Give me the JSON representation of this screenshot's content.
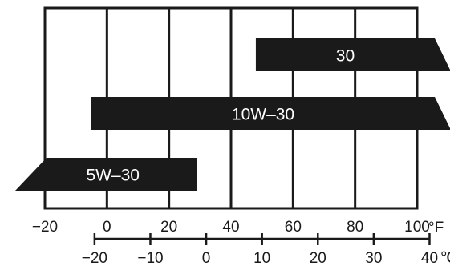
{
  "chart_data": {
    "type": "bar",
    "orientation": "horizontal",
    "title": "",
    "xlabel": "",
    "ylabel": "",
    "xlim_f": [
      -20,
      100
    ],
    "grid": true,
    "bars": [
      {
        "label": "30",
        "start_f": 48,
        "end_f": 100,
        "open_start": false,
        "open_end": true
      },
      {
        "label": "10W–30",
        "start_f": -5,
        "end_f": 100,
        "open_start": false,
        "open_end": true
      },
      {
        "label": "5W–30",
        "start_f": -20,
        "end_f": 29,
        "open_start": true,
        "open_end": false
      }
    ],
    "axis_f": {
      "ticks": [
        "−20",
        "0",
        "20",
        "40",
        "60",
        "80",
        "100"
      ],
      "values": [
        -20,
        0,
        20,
        40,
        60,
        80,
        100
      ],
      "unit": "°F"
    },
    "axis_c": {
      "ticks": [
        "−20",
        "−10",
        "0",
        "10",
        "20",
        "30",
        "40"
      ],
      "values": [
        -20,
        -10,
        0,
        10,
        20,
        30,
        40
      ],
      "unit": "℃"
    },
    "colors": {
      "bar": "#1a1a1a",
      "grid": "#1a1a1a",
      "label": "#ffffff"
    }
  }
}
